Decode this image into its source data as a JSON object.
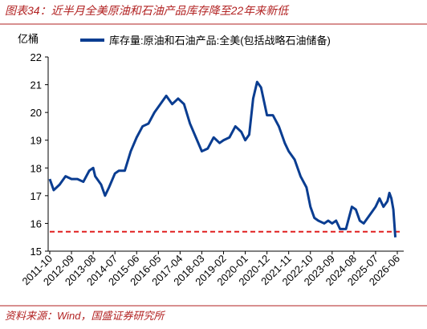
{
  "chart_data": {
    "type": "line",
    "title": "图表34：近半月全美原油和石油产品库存降至22年来新低",
    "y_label": "亿桶",
    "source": "资料来源：Wind，国盛证券研究所",
    "x": [
      "2011-10",
      "2011-12",
      "2012-03",
      "2012-06",
      "2012-09",
      "2012-12",
      "2013-03",
      "2013-06",
      "2013-08",
      "2013-09",
      "2013-12",
      "2014-02",
      "2014-04",
      "2014-07",
      "2014-09",
      "2014-12",
      "2015-03",
      "2015-06",
      "2015-09",
      "2015-12",
      "2016-03",
      "2016-05",
      "2016-09",
      "2016-12",
      "2017-03",
      "2017-06",
      "2017-09",
      "2017-12",
      "2018-03",
      "2018-06",
      "2018-09",
      "2018-12",
      "2019-02",
      "2019-05",
      "2019-08",
      "2019-11",
      "2020-01",
      "2020-03",
      "2020-05",
      "2020-07",
      "2020-09",
      "2020-12",
      "2021-03",
      "2021-06",
      "2021-09",
      "2021-11",
      "2022-02",
      "2022-05",
      "2022-08",
      "2022-10",
      "2022-12",
      "2023-02",
      "2023-05",
      "2023-07",
      "2023-09",
      "2023-11",
      "2024-01",
      "2024-04",
      "2024-07",
      "2024-09",
      "2024-11",
      "2025-01",
      "2025-03",
      "2025-05",
      "2025-07",
      "2025-09",
      "2025-11",
      "2026-01",
      "2026-02",
      "2026-03",
      "2026-04",
      "2026-05"
    ],
    "series": [
      {
        "name": "库存量:原油和石油产品:全美(包括战略石油储备)",
        "color": "#0a3d91",
        "values": [
          17.6,
          17.2,
          17.4,
          17.7,
          17.6,
          17.6,
          17.5,
          17.9,
          18.0,
          17.7,
          17.4,
          17.0,
          17.3,
          17.8,
          17.9,
          17.9,
          18.6,
          19.1,
          19.5,
          19.6,
          20.0,
          20.2,
          20.6,
          20.3,
          20.5,
          20.3,
          19.6,
          19.1,
          18.6,
          18.7,
          19.1,
          18.9,
          19.0,
          19.1,
          19.5,
          19.3,
          19.0,
          19.2,
          20.5,
          21.1,
          20.9,
          19.9,
          19.9,
          19.5,
          18.9,
          18.6,
          18.3,
          17.7,
          17.3,
          16.6,
          16.2,
          16.1,
          16.0,
          16.1,
          16.0,
          16.1,
          15.8,
          15.8,
          16.6,
          16.5,
          16.1,
          16.0,
          16.2,
          16.4,
          16.6,
          16.9,
          16.6,
          16.8,
          17.1,
          16.9,
          16.5,
          15.5
        ]
      }
    ],
    "xticks": [
      "2011-10",
      "2012-09",
      "2013-08",
      "2014-07",
      "2015-06",
      "2016-05",
      "2017-04",
      "2018-03",
      "2019-02",
      "2020-01",
      "2020-12",
      "2021-11",
      "2022-10",
      "2023-09",
      "2024-08",
      "2025-07",
      "2026-06"
    ],
    "xlim": [
      "2011-10",
      "2026-06"
    ],
    "ylim": [
      15,
      22
    ],
    "yticks": [
      15,
      16,
      17,
      18,
      19,
      20,
      21,
      22
    ],
    "reference_line": {
      "value": 15.7,
      "color": "#e02020"
    },
    "legend": "top"
  }
}
